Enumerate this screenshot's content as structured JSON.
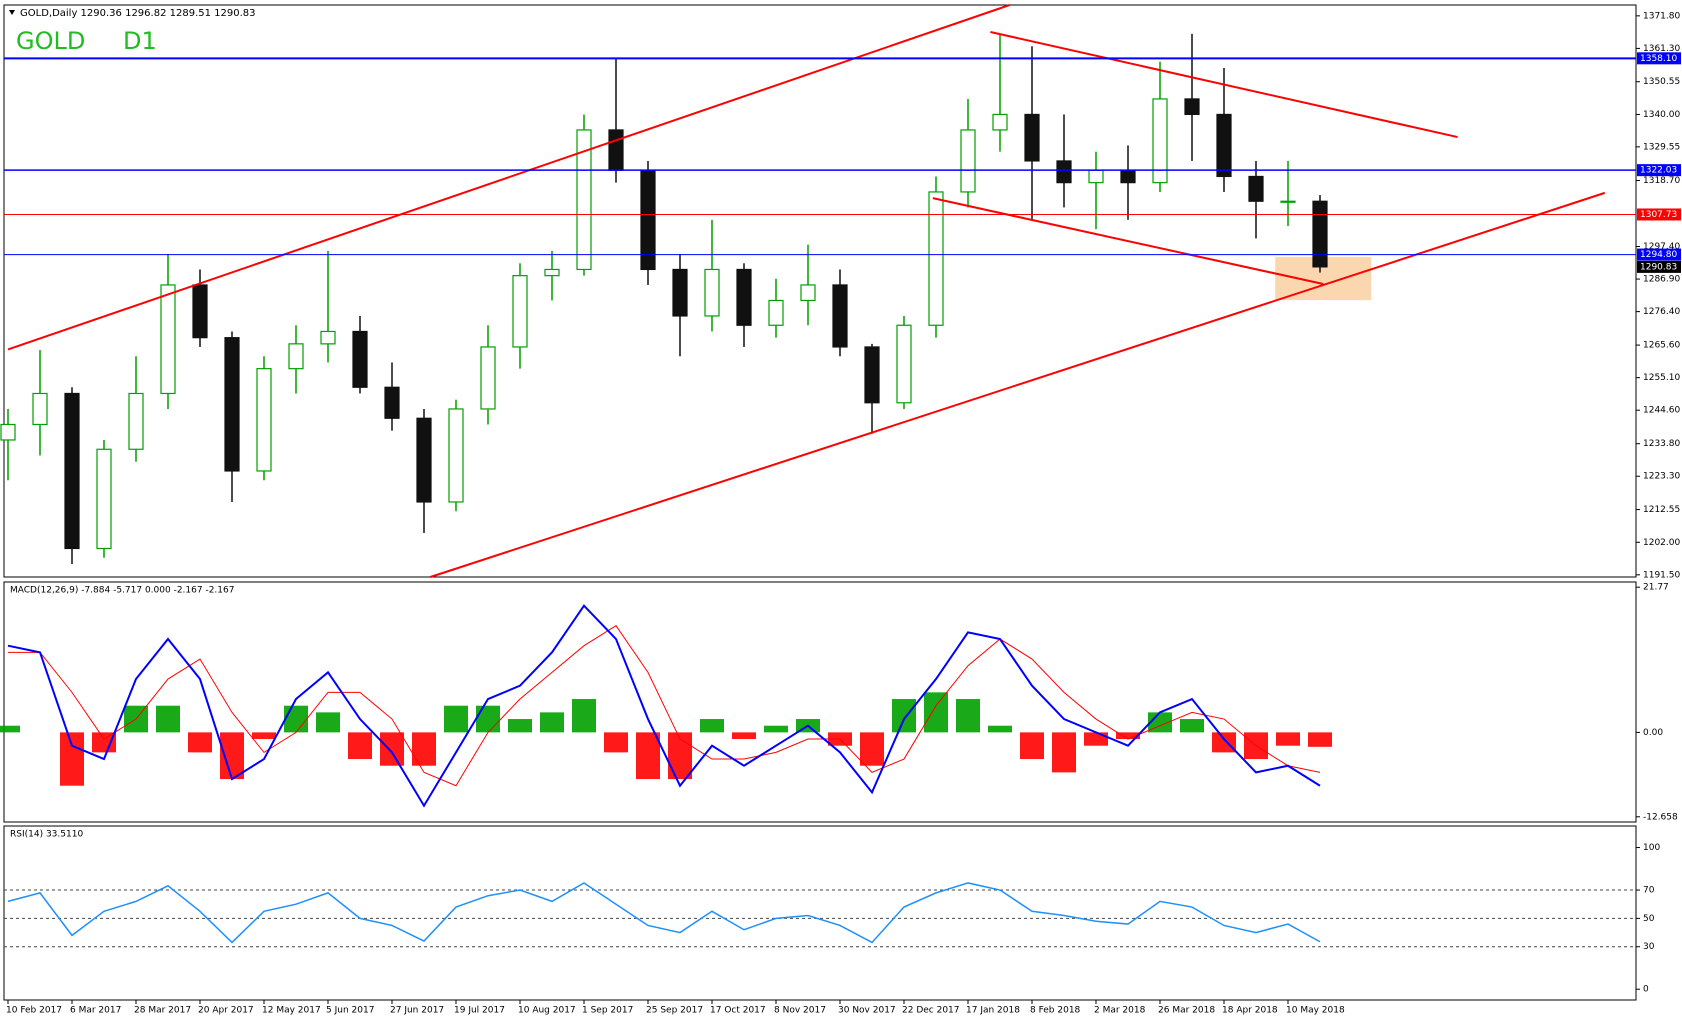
{
  "header": {
    "symbol": "GOLD,Daily  1290.36 1296.82 1289.51 1290.83",
    "badge_symbol": "GOLD",
    "badge_period": "D1"
  },
  "chart_data": [
    {
      "type": "candlestick",
      "categories": [
        "10 Feb 2017",
        null,
        "6 Mar 2017",
        null,
        "28 Mar 2017",
        null,
        "20 Apr 2017",
        null,
        "12 May 2017",
        null,
        "5 Jun 2017",
        null,
        "27 Jun 2017",
        null,
        "19 Jul 2017",
        null,
        "10 Aug 2017",
        null,
        "1 Sep 2017",
        null,
        "25 Sep 2017",
        null,
        "17 Oct 2017",
        null,
        "8 Nov 2017",
        null,
        "30 Nov 2017",
        null,
        "22 Dec 2017",
        null,
        "17 Jan 2018",
        null,
        "8 Feb 2018",
        null,
        "2 Mar 2018",
        null,
        "26 Mar 2018",
        null,
        "18 Apr 2018",
        null,
        "10 May 2018",
        null
      ],
      "open": [
        1235,
        1240,
        1250,
        1200,
        1232,
        1250,
        1285,
        1268,
        1225,
        1258,
        1266,
        1270,
        1252,
        1242,
        1215,
        1245,
        1265,
        1288,
        1290,
        1335,
        1322,
        1290,
        1275,
        1290,
        1272,
        1280,
        1285,
        1265,
        1247,
        1272,
        1315,
        1335,
        1340,
        1325,
        1318,
        1322,
        1318,
        1345,
        1340,
        1320,
        1312,
        1312
      ],
      "high": [
        1245,
        1264,
        1252,
        1235,
        1262,
        1295,
        1290,
        1270,
        1262,
        1272,
        1296,
        1275,
        1260,
        1245,
        1248,
        1272,
        1292,
        1296,
        1340,
        1358,
        1325,
        1295,
        1306,
        1292,
        1287,
        1298,
        1290,
        1266,
        1275,
        1320,
        1345,
        1366,
        1362,
        1340,
        1328,
        1330,
        1357,
        1366,
        1355,
        1325,
        1325,
        1314
      ],
      "low": [
        1222,
        1230,
        1195,
        1197,
        1228,
        1245,
        1265,
        1215,
        1222,
        1250,
        1260,
        1250,
        1238,
        1205,
        1212,
        1240,
        1258,
        1280,
        1288,
        1318,
        1285,
        1262,
        1270,
        1265,
        1268,
        1272,
        1262,
        1237,
        1245,
        1268,
        1310,
        1328,
        1306,
        1310,
        1303,
        1306,
        1315,
        1325,
        1315,
        1300,
        1304,
        1289
      ],
      "close": [
        1240,
        1250,
        1200,
        1232,
        1250,
        1285,
        1268,
        1225,
        1258,
        1266,
        1270,
        1252,
        1242,
        1215,
        1245,
        1265,
        1288,
        1290,
        1335,
        1322,
        1290,
        1275,
        1290,
        1272,
        1280,
        1285,
        1265,
        1247,
        1272,
        1315,
        1335,
        1340,
        1325,
        1318,
        1322,
        1318,
        1345,
        1340,
        1320,
        1312,
        1312,
        1290.83
      ],
      "up_color": "#00a000",
      "down_color": "#111111",
      "ylim": [
        1190.8,
        1375.3
      ],
      "yticks": [
        {
          "value": 1371.8,
          "label": "1371.80"
        },
        {
          "value": 1361.3,
          "label": "1361.30"
        },
        {
          "value": 1350.55,
          "label": "1350.55"
        },
        {
          "value": 1340,
          "label": "1340.00"
        },
        {
          "value": 1329.55,
          "label": "1329.55"
        },
        {
          "value": 1318.7,
          "label": "1318.70"
        },
        {
          "value": 1297.4,
          "label": "1297.40"
        },
        {
          "value": 1286.9,
          "label": "1286.90"
        },
        {
          "value": 1276.4,
          "label": "1276.40"
        },
        {
          "value": 1265.6,
          "label": "1265.60"
        },
        {
          "value": 1255.1,
          "label": "1255.10"
        },
        {
          "value": 1244.6,
          "label": "1244.60"
        },
        {
          "value": 1233.8,
          "label": "1233.80"
        },
        {
          "value": 1223.3,
          "label": "1223.30"
        },
        {
          "value": 1212.55,
          "label": "1212.55"
        },
        {
          "value": 1202,
          "label": "1202.00"
        },
        {
          "value": 1191.5,
          "label": "1191.50"
        }
      ],
      "levels": [
        {
          "value": 1358.1,
          "label": "1358.10",
          "color": "#0000ff",
          "width": 2
        },
        {
          "value": 1322.03,
          "label": "1322.03",
          "color": "#0000ff",
          "width": 1.5
        },
        {
          "value": 1307.73,
          "label": "1307.73",
          "color": "#ff0000",
          "width": 1
        },
        {
          "value": 1294.8,
          "label": "1294.80",
          "color": "#0000ff",
          "width": 1
        },
        {
          "value": 1290.83,
          "label": "1290.83",
          "color": "#000000",
          "width": 0
        }
      ],
      "trendlines": [
        {
          "color": "#ff0000",
          "points": [
            [
              0,
              1264.2
            ],
            [
              31.3,
              1375.3
            ]
          ]
        },
        {
          "color": "#ff0000",
          "points": [
            [
              13.2,
              1190.8
            ],
            [
              49.9,
              1314.7
            ]
          ]
        },
        {
          "color": "#ff0000",
          "points": [
            [
              30.7,
              1366.6
            ],
            [
              45.3,
              1332.7
            ]
          ]
        },
        {
          "color": "#ff0000",
          "points": [
            [
              28.9,
              1313
            ],
            [
              41.1,
              1285.3
            ]
          ]
        }
      ],
      "zone": {
        "color": "#fbd7b0",
        "x": [
          39.6,
          42.6
        ],
        "y": [
          1280.1,
          1294
        ]
      }
    },
    {
      "type": "macd",
      "title": "MACD(12,26,9) -7.884 -5.717 0.000 -2.167 -2.167",
      "ylim": [
        -13.44,
        22.55
      ],
      "yticks": [
        21.77,
        {
          "value": 0,
          "label": "0.00"
        },
        -12.658
      ],
      "histogram": {
        "up_color": "#00a000",
        "down_color": "#ff0000",
        "values": [
          1,
          0,
          -8,
          -3,
          4,
          4,
          -3,
          -7,
          -1,
          4,
          3,
          -4,
          -5,
          -5,
          4,
          4,
          2,
          3,
          5,
          -3,
          -7,
          -7,
          2,
          -1,
          1,
          2,
          -2,
          -5,
          5,
          6,
          5,
          1,
          -4,
          -6,
          -2,
          -1,
          3,
          2,
          -3,
          -4,
          -2,
          -2.167
        ]
      },
      "main": {
        "color": "#0000ff",
        "values": [
          13,
          12,
          -2,
          -4,
          8,
          14,
          8,
          -7,
          -4,
          5,
          9,
          2,
          -3,
          -11,
          -3,
          5,
          7,
          12,
          19,
          14,
          2,
          -8,
          -2,
          -5,
          -2,
          1,
          -3,
          -9,
          2,
          8,
          15,
          14,
          7,
          2,
          0,
          -2,
          3,
          5,
          -1,
          -6,
          -5,
          -8
        ]
      },
      "signal": {
        "color": "#ff0000",
        "values": [
          12,
          12,
          6,
          -1,
          2,
          8,
          11,
          3,
          -3,
          0,
          6,
          6,
          2,
          -6,
          -8,
          0,
          5,
          9,
          13,
          16,
          9,
          -1,
          -4,
          -4,
          -3,
          -1,
          -1,
          -6,
          -4,
          4,
          10,
          14,
          11,
          6,
          2,
          -1,
          1,
          3,
          2,
          -2,
          -5,
          -6
        ]
      }
    },
    {
      "type": "rsi",
      "title": "RSI(14) 33.5110",
      "color": "#1e90ff",
      "ylim": [
        -7.6,
        115.2
      ],
      "yticks": [
        100,
        70,
        50,
        30,
        0
      ],
      "levels": [
        70,
        50,
        30
      ],
      "values": [
        62,
        68,
        38,
        55,
        62,
        73,
        55,
        33,
        55,
        60,
        68,
        50,
        45,
        34,
        58,
        66,
        70,
        62,
        75,
        60,
        45,
        40,
        55,
        42,
        50,
        52,
        45,
        33,
        58,
        68,
        75,
        70,
        55,
        52,
        48,
        46,
        62,
        58,
        45,
        40,
        46,
        33.511
      ]
    }
  ]
}
